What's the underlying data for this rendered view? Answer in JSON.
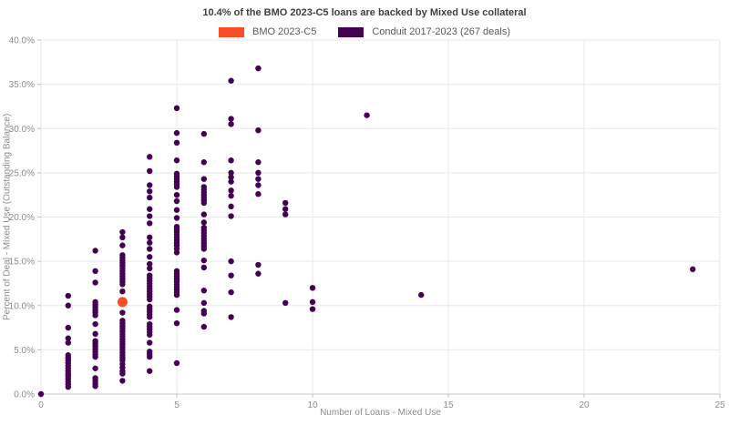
{
  "title": "10.4% of the BMO 2023-C5 loans are backed by Mixed Use collateral",
  "legend": [
    {
      "label": "BMO 2023-C5",
      "color": "#f94d28"
    },
    {
      "label": "Conduit 2017-2023 (267 deals)",
      "color": "#440154"
    }
  ],
  "chart_data": {
    "type": "scatter",
    "title": "10.4% of the BMO 2023-C5 loans are backed by Mixed Use collateral",
    "xlabel": "Number of Loans - Mixed Use",
    "ylabel": "Percent of Deal - Mixed Use (Outstanding Balance)",
    "xlim": [
      0,
      25
    ],
    "ylim": [
      0,
      40
    ],
    "x_ticks": [
      0,
      5,
      10,
      15,
      20,
      25
    ],
    "y_ticks": [
      0,
      5,
      10,
      15,
      20,
      25,
      30,
      35,
      40
    ],
    "y_tick_format": "percent_one_decimal",
    "grid": true,
    "legend_position": "top-center",
    "series": [
      {
        "name": "Conduit 2017-2023 (267 deals)",
        "color": "#440154",
        "points": [
          [
            0,
            0.0
          ],
          [
            1,
            11.1
          ],
          [
            1,
            10.0
          ],
          [
            1,
            7.5
          ],
          [
            1,
            6.3
          ],
          [
            1,
            5.8
          ],
          [
            1,
            4.4
          ],
          [
            1,
            4.1
          ],
          [
            1,
            3.8
          ],
          [
            1,
            3.5
          ],
          [
            1,
            3.2
          ],
          [
            1,
            2.9
          ],
          [
            1,
            2.6
          ],
          [
            1,
            2.3
          ],
          [
            1,
            2.0
          ],
          [
            1,
            1.7
          ],
          [
            1,
            1.4
          ],
          [
            1,
            1.1
          ],
          [
            1,
            0.8
          ],
          [
            2,
            16.2
          ],
          [
            2,
            13.9
          ],
          [
            2,
            12.6
          ],
          [
            2,
            10.4
          ],
          [
            2,
            10.1
          ],
          [
            2,
            9.8
          ],
          [
            2,
            9.5
          ],
          [
            2,
            9.2
          ],
          [
            2,
            8.9
          ],
          [
            2,
            7.9
          ],
          [
            2,
            6.8
          ],
          [
            2,
            6.0
          ],
          [
            2,
            5.7
          ],
          [
            2,
            5.4
          ],
          [
            2,
            5.1
          ],
          [
            2,
            4.8
          ],
          [
            2,
            4.5
          ],
          [
            2,
            4.2
          ],
          [
            2,
            2.9
          ],
          [
            2,
            1.8
          ],
          [
            2,
            1.5
          ],
          [
            2,
            1.2
          ],
          [
            2,
            0.9
          ],
          [
            3,
            18.3
          ],
          [
            3,
            17.7
          ],
          [
            3,
            16.8
          ],
          [
            3,
            15.7
          ],
          [
            3,
            15.4
          ],
          [
            3,
            15.1
          ],
          [
            3,
            14.8
          ],
          [
            3,
            14.5
          ],
          [
            3,
            14.2
          ],
          [
            3,
            13.9
          ],
          [
            3,
            13.6
          ],
          [
            3,
            13.3
          ],
          [
            3,
            13.0
          ],
          [
            3,
            12.7
          ],
          [
            3,
            12.4
          ],
          [
            3,
            11.6
          ],
          [
            3,
            9.2
          ],
          [
            3,
            8.3
          ],
          [
            3,
            8.0
          ],
          [
            3,
            7.7
          ],
          [
            3,
            7.4
          ],
          [
            3,
            7.1
          ],
          [
            3,
            6.8
          ],
          [
            3,
            6.5
          ],
          [
            3,
            6.2
          ],
          [
            3,
            5.9
          ],
          [
            3,
            5.6
          ],
          [
            3,
            5.3
          ],
          [
            3,
            5.0
          ],
          [
            3,
            4.7
          ],
          [
            3,
            4.4
          ],
          [
            3,
            4.1
          ],
          [
            3,
            3.8
          ],
          [
            3,
            3.4
          ],
          [
            3,
            3.0
          ],
          [
            3,
            2.6
          ],
          [
            3,
            2.3
          ],
          [
            3,
            1.5
          ],
          [
            4,
            26.8
          ],
          [
            4,
            25.2
          ],
          [
            4,
            23.6
          ],
          [
            4,
            22.9
          ],
          [
            4,
            22.2
          ],
          [
            4,
            20.9
          ],
          [
            4,
            20.1
          ],
          [
            4,
            19.3
          ],
          [
            4,
            17.7
          ],
          [
            4,
            17.1
          ],
          [
            4,
            16.4
          ],
          [
            4,
            15.5
          ],
          [
            4,
            14.7
          ],
          [
            4,
            14.2
          ],
          [
            4,
            13.4
          ],
          [
            4,
            13.1
          ],
          [
            4,
            12.8
          ],
          [
            4,
            12.5
          ],
          [
            4,
            12.2
          ],
          [
            4,
            11.9
          ],
          [
            4,
            11.6
          ],
          [
            4,
            11.3
          ],
          [
            4,
            11.0
          ],
          [
            4,
            10.7
          ],
          [
            4,
            9.9
          ],
          [
            4,
            9.6
          ],
          [
            4,
            9.3
          ],
          [
            4,
            9.0
          ],
          [
            4,
            8.7
          ],
          [
            4,
            7.9
          ],
          [
            4,
            7.6
          ],
          [
            4,
            7.3
          ],
          [
            4,
            7.0
          ],
          [
            4,
            6.7
          ],
          [
            4,
            5.8
          ],
          [
            4,
            4.8
          ],
          [
            4,
            4.5
          ],
          [
            4,
            4.2
          ],
          [
            4,
            2.6
          ],
          [
            5,
            32.3
          ],
          [
            5,
            29.5
          ],
          [
            5,
            28.4
          ],
          [
            5,
            26.4
          ],
          [
            5,
            24.9
          ],
          [
            5,
            24.6
          ],
          [
            5,
            24.3
          ],
          [
            5,
            24.0
          ],
          [
            5,
            23.7
          ],
          [
            5,
            23.4
          ],
          [
            5,
            22.5
          ],
          [
            5,
            21.8
          ],
          [
            5,
            20.8
          ],
          [
            5,
            19.9
          ],
          [
            5,
            18.9
          ],
          [
            5,
            18.6
          ],
          [
            5,
            18.3
          ],
          [
            5,
            18.0
          ],
          [
            5,
            17.7
          ],
          [
            5,
            17.4
          ],
          [
            5,
            17.1
          ],
          [
            5,
            16.8
          ],
          [
            5,
            16.4
          ],
          [
            5,
            16.0
          ],
          [
            5,
            13.9
          ],
          [
            5,
            13.6
          ],
          [
            5,
            13.3
          ],
          [
            5,
            13.0
          ],
          [
            5,
            12.7
          ],
          [
            5,
            12.4
          ],
          [
            5,
            12.1
          ],
          [
            5,
            11.8
          ],
          [
            5,
            11.5
          ],
          [
            5,
            11.2
          ],
          [
            5,
            9.5
          ],
          [
            5,
            8.0
          ],
          [
            5,
            3.5
          ],
          [
            6,
            29.4
          ],
          [
            6,
            26.2
          ],
          [
            6,
            24.3
          ],
          [
            6,
            23.4
          ],
          [
            6,
            23.1
          ],
          [
            6,
            22.8
          ],
          [
            6,
            22.5
          ],
          [
            6,
            22.2
          ],
          [
            6,
            21.9
          ],
          [
            6,
            21.6
          ],
          [
            6,
            20.3
          ],
          [
            6,
            19.4
          ],
          [
            6,
            18.8
          ],
          [
            6,
            18.5
          ],
          [
            6,
            18.2
          ],
          [
            6,
            17.9
          ],
          [
            6,
            17.6
          ],
          [
            6,
            17.3
          ],
          [
            6,
            17.0
          ],
          [
            6,
            16.7
          ],
          [
            6,
            16.4
          ],
          [
            6,
            15.1
          ],
          [
            6,
            14.3
          ],
          [
            6,
            11.7
          ],
          [
            6,
            10.3
          ],
          [
            6,
            9.4
          ],
          [
            6,
            9.1
          ],
          [
            6,
            7.6
          ],
          [
            7,
            35.4
          ],
          [
            7,
            31.1
          ],
          [
            7,
            30.5
          ],
          [
            7,
            26.4
          ],
          [
            7,
            25.0
          ],
          [
            7,
            24.5
          ],
          [
            7,
            24.0
          ],
          [
            7,
            23.0
          ],
          [
            7,
            22.4
          ],
          [
            7,
            21.2
          ],
          [
            7,
            20.1
          ],
          [
            7,
            15.0
          ],
          [
            7,
            13.4
          ],
          [
            7,
            11.5
          ],
          [
            7,
            8.7
          ],
          [
            8,
            36.8
          ],
          [
            8,
            29.8
          ],
          [
            8,
            26.2
          ],
          [
            8,
            25.0
          ],
          [
            8,
            24.3
          ],
          [
            8,
            23.6
          ],
          [
            8,
            22.6
          ],
          [
            8,
            14.6
          ],
          [
            8,
            13.6
          ],
          [
            9,
            21.6
          ],
          [
            9,
            20.9
          ],
          [
            9,
            20.3
          ],
          [
            9,
            10.3
          ],
          [
            10,
            12.0
          ],
          [
            10,
            10.4
          ],
          [
            10,
            9.6
          ],
          [
            12,
            31.5
          ],
          [
            14,
            11.2
          ],
          [
            24,
            14.1
          ]
        ]
      },
      {
        "name": "BMO 2023-C5",
        "color": "#f94d28",
        "points": [
          [
            3,
            10.4
          ]
        ]
      }
    ]
  }
}
